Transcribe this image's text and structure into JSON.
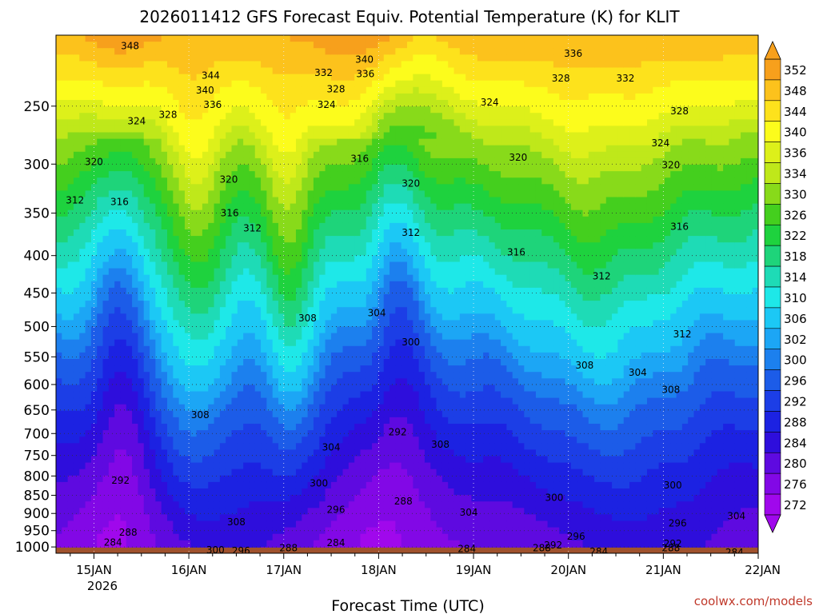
{
  "chart_data": {
    "type": "heatmap",
    "title": "2026011412 GFS Forecast Equiv. Potential Temperature (K) for KLIT",
    "xlabel": "Forecast Time (UTC)",
    "ylabel": "",
    "credit": "coolwx.com/models",
    "x_ticks": [
      "15JAN",
      "16JAN",
      "17JAN",
      "18JAN",
      "19JAN",
      "20JAN",
      "21JAN",
      "22JAN"
    ],
    "x_year_label": "2026",
    "y_ticks": [
      "250",
      "300",
      "350",
      "400",
      "450",
      "500",
      "550",
      "600",
      "650",
      "700",
      "750",
      "800",
      "850",
      "900",
      "950",
      "1000"
    ],
    "y_values": [
      250,
      300,
      350,
      400,
      450,
      500,
      550,
      600,
      650,
      700,
      750,
      800,
      850,
      900,
      950,
      1000
    ],
    "xlim_days": [
      14.6,
      22.0
    ],
    "ylim_hpa": [
      200,
      1020
    ],
    "y_scale": "log-pressure",
    "grid": true,
    "legend": "right colorbar",
    "colorbar": {
      "levels": [
        "352",
        "348",
        "344",
        "340",
        "336",
        "334",
        "330",
        "326",
        "322",
        "318",
        "314",
        "310",
        "306",
        "302",
        "300",
        "296",
        "292",
        "288",
        "284",
        "280",
        "276",
        "272"
      ],
      "colors": [
        "#f7a01c",
        "#fcc21c",
        "#fde21c",
        "#fcfc1c",
        "#ddf01a",
        "#bfe81a",
        "#88da1a",
        "#44cf1e",
        "#1ed23e",
        "#1ed47a",
        "#1edbb6",
        "#1ee8e8",
        "#1cc8f5",
        "#1ca6f5",
        "#1c80ee",
        "#1c5ce8",
        "#1c3ee6",
        "#1c22e2",
        "#2e0edc",
        "#5e0ae0",
        "#8208e6",
        "#a008ec"
      ]
    },
    "contour_labels": [
      {
        "text": "348",
        "day": 15.38,
        "p": 207
      },
      {
        "text": "340",
        "day": 17.85,
        "p": 216
      },
      {
        "text": "336",
        "day": 20.05,
        "p": 212
      },
      {
        "text": "344",
        "day": 16.23,
        "p": 227
      },
      {
        "text": "332",
        "day": 17.42,
        "p": 225
      },
      {
        "text": "336",
        "day": 17.86,
        "p": 226
      },
      {
        "text": "328",
        "day": 19.92,
        "p": 229
      },
      {
        "text": "332",
        "day": 20.6,
        "p": 229
      },
      {
        "text": "340",
        "day": 16.17,
        "p": 238
      },
      {
        "text": "328",
        "day": 17.55,
        "p": 237
      },
      {
        "text": "336",
        "day": 16.25,
        "p": 249
      },
      {
        "text": "324",
        "day": 17.45,
        "p": 249
      },
      {
        "text": "324",
        "day": 19.17,
        "p": 247
      },
      {
        "text": "328",
        "day": 21.17,
        "p": 254
      },
      {
        "text": "324",
        "day": 15.45,
        "p": 262
      },
      {
        "text": "328",
        "day": 15.78,
        "p": 257
      },
      {
        "text": "324",
        "day": 20.97,
        "p": 281
      },
      {
        "text": "316",
        "day": 17.8,
        "p": 295
      },
      {
        "text": "320",
        "day": 19.47,
        "p": 294
      },
      {
        "text": "320",
        "day": 15.0,
        "p": 298
      },
      {
        "text": "320",
        "day": 21.08,
        "p": 301
      },
      {
        "text": "320",
        "day": 16.42,
        "p": 315
      },
      {
        "text": "320",
        "day": 18.34,
        "p": 319
      },
      {
        "text": "312",
        "day": 14.8,
        "p": 336
      },
      {
        "text": "316",
        "day": 15.27,
        "p": 338
      },
      {
        "text": "316",
        "day": 16.43,
        "p": 350
      },
      {
        "text": "312",
        "day": 16.67,
        "p": 367
      },
      {
        "text": "312",
        "day": 18.34,
        "p": 372
      },
      {
        "text": "316",
        "day": 21.17,
        "p": 365
      },
      {
        "text": "316",
        "day": 19.45,
        "p": 396
      },
      {
        "text": "312",
        "day": 20.35,
        "p": 427
      },
      {
        "text": "304",
        "day": 17.98,
        "p": 479
      },
      {
        "text": "308",
        "day": 17.25,
        "p": 487
      },
      {
        "text": "300",
        "day": 18.34,
        "p": 525
      },
      {
        "text": "312",
        "day": 21.2,
        "p": 512
      },
      {
        "text": "308",
        "day": 20.17,
        "p": 565
      },
      {
        "text": "304",
        "day": 20.73,
        "p": 578
      },
      {
        "text": "308",
        "day": 21.08,
        "p": 610
      },
      {
        "text": "308",
        "day": 16.12,
        "p": 660
      },
      {
        "text": "292",
        "day": 18.2,
        "p": 697
      },
      {
        "text": "308",
        "day": 18.65,
        "p": 725
      },
      {
        "text": "304",
        "day": 17.5,
        "p": 731
      },
      {
        "text": "292",
        "day": 15.28,
        "p": 811
      },
      {
        "text": "300",
        "day": 17.37,
        "p": 819
      },
      {
        "text": "300",
        "day": 21.1,
        "p": 824
      },
      {
        "text": "300",
        "day": 19.85,
        "p": 857
      },
      {
        "text": "288",
        "day": 18.26,
        "p": 866
      },
      {
        "text": "296",
        "day": 17.55,
        "p": 889
      },
      {
        "text": "304",
        "day": 18.95,
        "p": 897
      },
      {
        "text": "304",
        "day": 21.77,
        "p": 908
      },
      {
        "text": "308",
        "day": 16.5,
        "p": 925
      },
      {
        "text": "296",
        "day": 21.15,
        "p": 928
      },
      {
        "text": "288",
        "day": 15.36,
        "p": 955
      },
      {
        "text": "296",
        "day": 20.08,
        "p": 967
      },
      {
        "text": "284",
        "day": 15.2,
        "p": 986
      },
      {
        "text": "284",
        "day": 17.55,
        "p": 987
      },
      {
        "text": "292",
        "day": 19.84,
        "p": 995
      },
      {
        "text": "292",
        "day": 21.1,
        "p": 990
      },
      {
        "text": "288",
        "day": 17.05,
        "p": 1004
      },
      {
        "text": "288",
        "day": 19.72,
        "p": 1004
      },
      {
        "text": "284",
        "day": 18.93,
        "p": 1006
      },
      {
        "text": "288",
        "day": 21.08,
        "p": 1003
      },
      {
        "text": "300",
        "day": 16.28,
        "p": 1010
      },
      {
        "text": "296",
        "day": 16.55,
        "p": 1012
      },
      {
        "text": "284",
        "day": 20.32,
        "p": 1015
      },
      {
        "text": "284",
        "day": 21.75,
        "p": 1018
      }
    ]
  }
}
